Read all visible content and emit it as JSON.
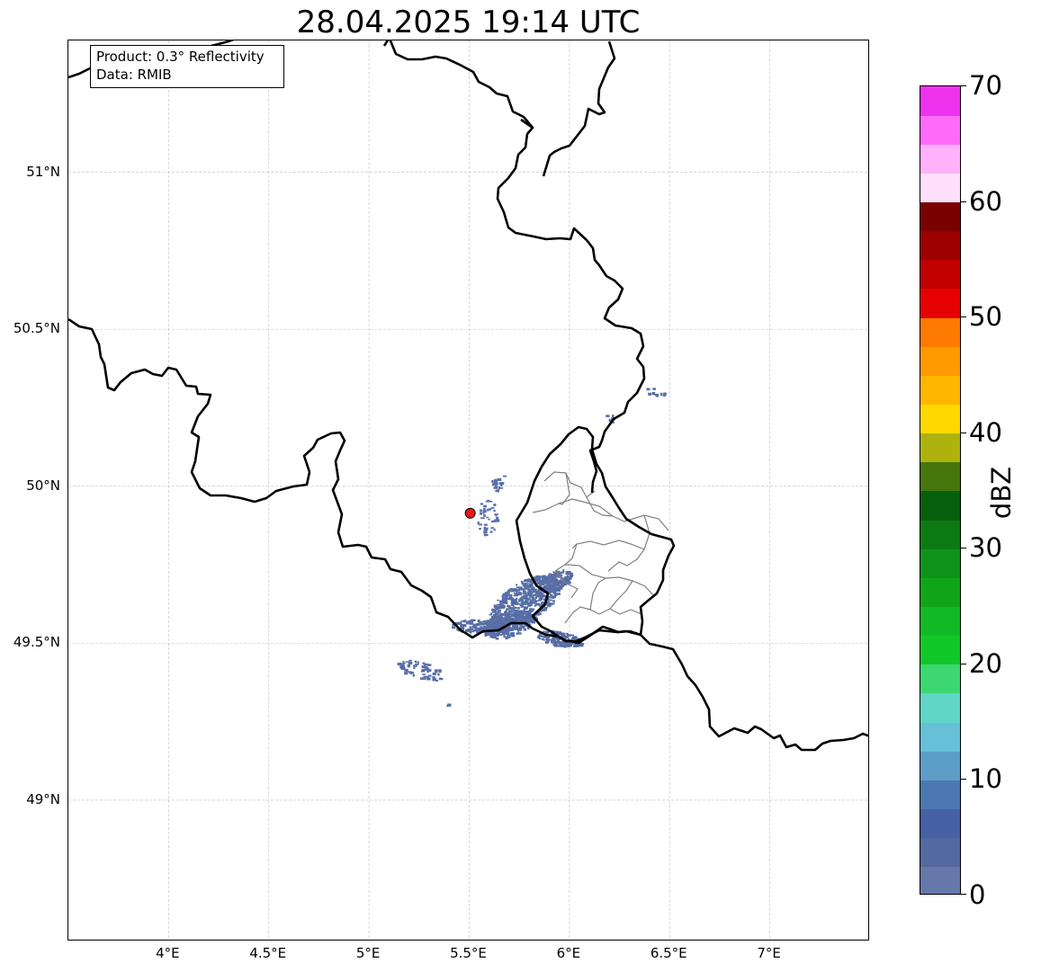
{
  "title": "28.04.2025 19:14 UTC",
  "info_box": {
    "product": "Product: 0.3° Reflectivity",
    "data_source": "Data: RMIB"
  },
  "map": {
    "lon_range": [
      3.5,
      7.5
    ],
    "lat_range": [
      48.55,
      51.42
    ],
    "lon_ticks": [
      {
        "value": 4.0,
        "label": "4°E"
      },
      {
        "value": 4.5,
        "label": "4.5°E"
      },
      {
        "value": 5.0,
        "label": "5°E"
      },
      {
        "value": 5.5,
        "label": "5.5°E"
      },
      {
        "value": 6.0,
        "label": "6°E"
      },
      {
        "value": 6.5,
        "label": "6.5°E"
      },
      {
        "value": 7.0,
        "label": "7°E"
      }
    ],
    "lat_ticks": [
      {
        "value": 49.0,
        "label": "49°N"
      },
      {
        "value": 49.5,
        "label": "49.5°N"
      },
      {
        "value": 50.0,
        "label": "50°N"
      },
      {
        "value": 50.5,
        "label": "50.5°N"
      },
      {
        "value": 51.0,
        "label": "51°N"
      }
    ],
    "gridlines": true,
    "radar_site": {
      "lon": 5.505,
      "lat": 49.914,
      "color": "#e8181c"
    },
    "border_color": "#000000",
    "subregion_border_color": "#808080",
    "echo_color": "#5a6fa6"
  },
  "colorbar": {
    "min": 0,
    "max": 70,
    "unit": "dBZ",
    "ticks": [
      {
        "value": 0,
        "label": "0"
      },
      {
        "value": 10,
        "label": "10"
      },
      {
        "value": 20,
        "label": "20"
      },
      {
        "value": 30,
        "label": "30"
      },
      {
        "value": 40,
        "label": "40"
      },
      {
        "value": 50,
        "label": "50"
      },
      {
        "value": 60,
        "label": "60"
      },
      {
        "value": 70,
        "label": "70"
      }
    ],
    "colors": [
      "#6677aa",
      "#54699f",
      "#4560a3",
      "#4b78b0",
      "#5c9dc7",
      "#65c0d8",
      "#61d6c6",
      "#3dd771",
      "#12c828",
      "#12b927",
      "#10a516",
      "#0f931a",
      "#0b7a12",
      "#065f0c",
      "#47770c",
      "#adb30c",
      "#ffd800",
      "#ffb600",
      "#ff9a00",
      "#ff7b00",
      "#e60000",
      "#c20000",
      "#9e0000",
      "#7a0000",
      "#ffe0fb",
      "#ffb2fa",
      "#ff6bf8",
      "#ee33ef"
    ]
  }
}
